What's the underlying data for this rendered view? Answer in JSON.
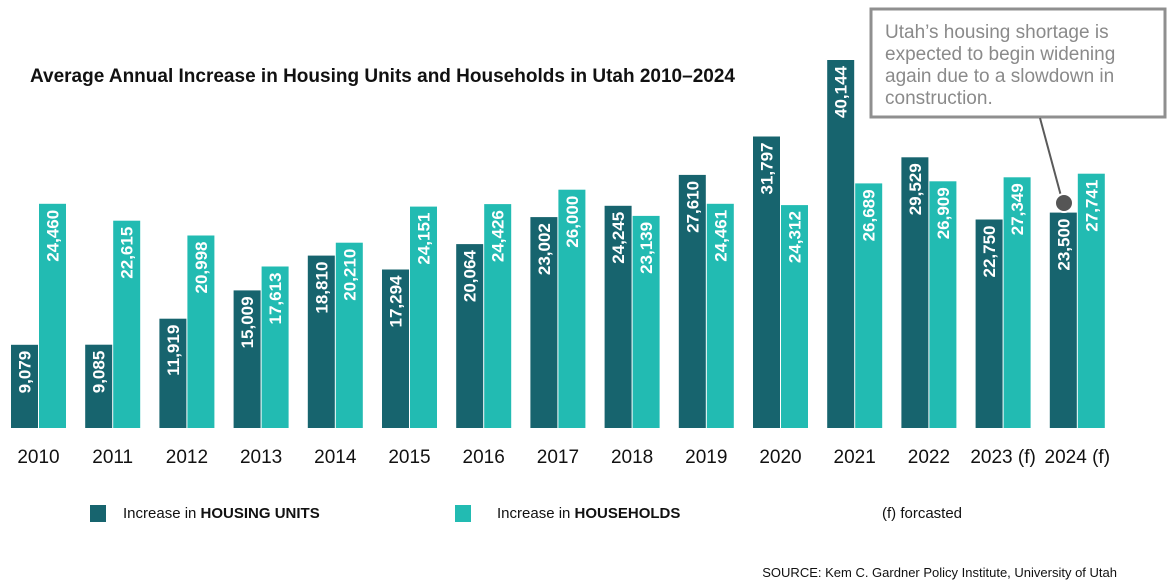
{
  "chart_data": {
    "type": "bar",
    "title": "Average Annual Increase in Housing Units and Households in Utah 2010–2024",
    "categories": [
      "2010",
      "2011",
      "2012",
      "2013",
      "2014",
      "2015",
      "2016",
      "2017",
      "2018",
      "2019",
      "2020",
      "2021",
      "2022",
      "2023 (f)",
      "2024 (f)"
    ],
    "series": [
      {
        "name": "Increase in HOUSING UNITS",
        "legend_prefix": "Increase in ",
        "legend_bold": "HOUSING UNITS",
        "color": "#17646e",
        "values": [
          9079,
          9085,
          11919,
          15009,
          18810,
          17294,
          20064,
          23002,
          24245,
          27610,
          31797,
          40144,
          29529,
          22750,
          23500
        ],
        "labels": [
          "9,079",
          "9,085",
          "11,919",
          "15,009",
          "18,810",
          "17,294",
          "20,064",
          "23,002",
          "24,245",
          "27,610",
          "31,797",
          "40,144",
          "29,529",
          "22,750",
          "23,500"
        ]
      },
      {
        "name": "Increase in HOUSEHOLDS",
        "legend_prefix": "Increase in ",
        "legend_bold": "HOUSEHOLDS",
        "color": "#22bbb2",
        "values": [
          24460,
          22615,
          20998,
          17613,
          20210,
          24151,
          24426,
          26000,
          23139,
          24461,
          24312,
          26689,
          26909,
          27349,
          27741
        ],
        "labels": [
          "24,460",
          "22,615",
          "20,998",
          "17,613",
          "20,210",
          "24,151",
          "24,426",
          "26,000",
          "23,139",
          "24,461",
          "24,312",
          "26,689",
          "26,909",
          "27,349",
          "27,741"
        ]
      }
    ],
    "ylim": [
      0,
      42000
    ],
    "xlabel": "",
    "ylabel": "",
    "grid": false,
    "legend_placement": "bottom",
    "forecast_note": "(f) forcasted",
    "annotation": {
      "text_lines": [
        "Utah’s housing shortage is",
        "expected to begin widening",
        "again due to a slowdown in",
        "construction."
      ],
      "target_category": "2024 (f)"
    },
    "source": "SOURCE: Kem C. Gardner Policy Institute, University of Utah"
  }
}
